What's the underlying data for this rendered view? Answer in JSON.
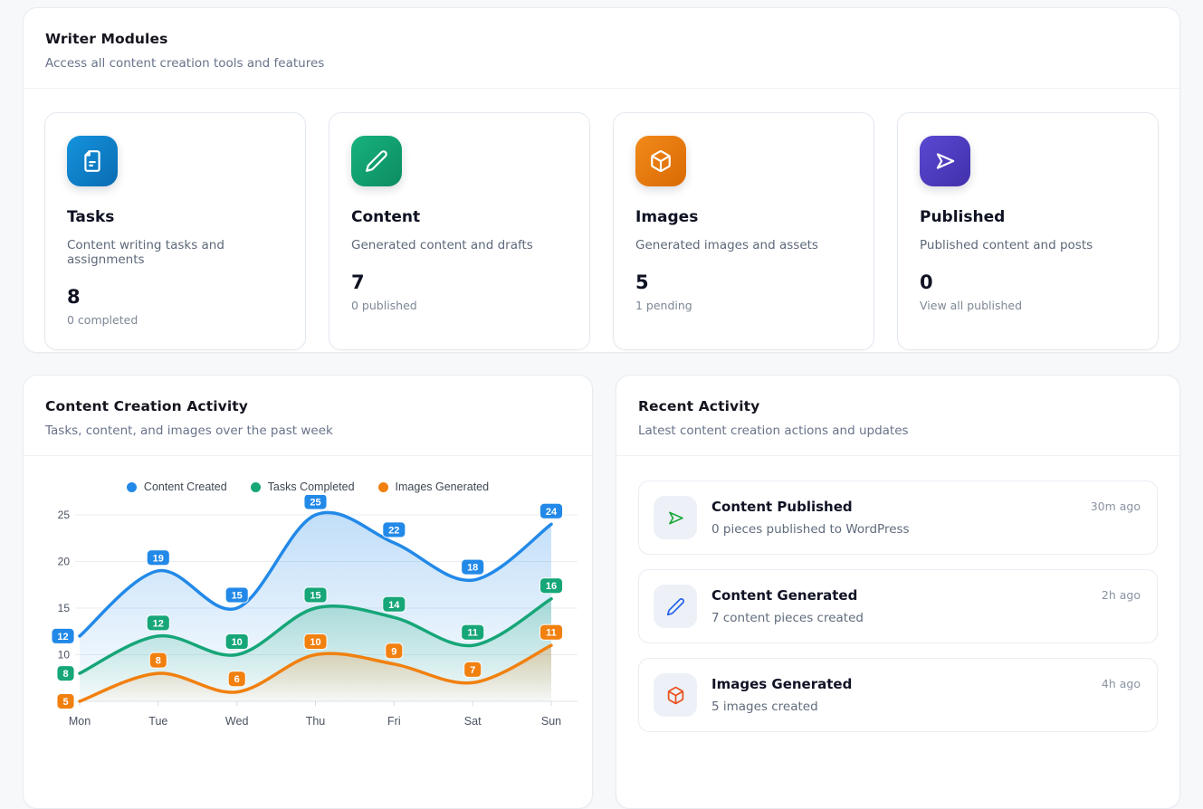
{
  "writer_modules": {
    "title": "Writer Modules",
    "subtitle": "Access all content creation tools and features",
    "cards": [
      {
        "icon": "document-icon",
        "title": "Tasks",
        "description": "Content writing tasks and assignments",
        "value": "8",
        "stat": "0 completed",
        "gradient_from": "#1493dd",
        "gradient_to": "#0a6cb2"
      },
      {
        "icon": "pencil-icon",
        "title": "Content",
        "description": "Generated content and drafts",
        "value": "7",
        "stat": "0 published",
        "gradient_from": "#17b27e",
        "gradient_to": "#0d8c62"
      },
      {
        "icon": "cube-icon",
        "title": "Images",
        "description": "Generated images and assets",
        "value": "5",
        "stat": "1 pending",
        "gradient_from": "#f28a1a",
        "gradient_to": "#d96a04"
      },
      {
        "icon": "send-icon",
        "title": "Published",
        "description": "Published content and posts",
        "value": "0",
        "stat": "View all published",
        "gradient_from": "#5a49d2",
        "gradient_to": "#4130ab"
      }
    ]
  },
  "activity_chart": {
    "title": "Content Creation Activity",
    "subtitle": "Tasks, content, and images over the past week"
  },
  "recent_activity": {
    "title": "Recent Activity",
    "subtitle": "Latest content creation actions and updates",
    "items": [
      {
        "icon": "send-icon",
        "title": "Content Published",
        "description": "0 pieces published to WordPress",
        "time": "30m ago",
        "icon_color": "#1ea83c"
      },
      {
        "icon": "pencil-icon",
        "title": "Content Generated",
        "description": "7 content pieces created",
        "time": "2h ago",
        "icon_color": "#2663eb"
      },
      {
        "icon": "cube-icon",
        "title": "Images Generated",
        "description": "5 images created",
        "time": "4h ago",
        "icon_color": "#e8511d"
      }
    ]
  },
  "chart_data": {
    "type": "line",
    "title": "Content Creation Activity",
    "x": [
      "Mon",
      "Tue",
      "Wed",
      "Thu",
      "Fri",
      "Sat",
      "Sun"
    ],
    "series": [
      {
        "name": "Content Created",
        "color": "#2289e8",
        "values": [
          12,
          19,
          15,
          25,
          22,
          18,
          24
        ]
      },
      {
        "name": "Tasks Completed",
        "color": "#16a678",
        "values": [
          8,
          12,
          10,
          15,
          14,
          11,
          16
        ]
      },
      {
        "name": "Images Generated",
        "color": "#f1800f",
        "values": [
          5,
          8,
          6,
          10,
          9,
          7,
          11
        ]
      }
    ],
    "xlabel": "",
    "ylabel": "",
    "ylim": [
      5,
      25
    ],
    "yticks": [
      5,
      10,
      15,
      20,
      25
    ],
    "grid": true,
    "legend_position": "top",
    "point_labels": true,
    "area_fill": true
  }
}
